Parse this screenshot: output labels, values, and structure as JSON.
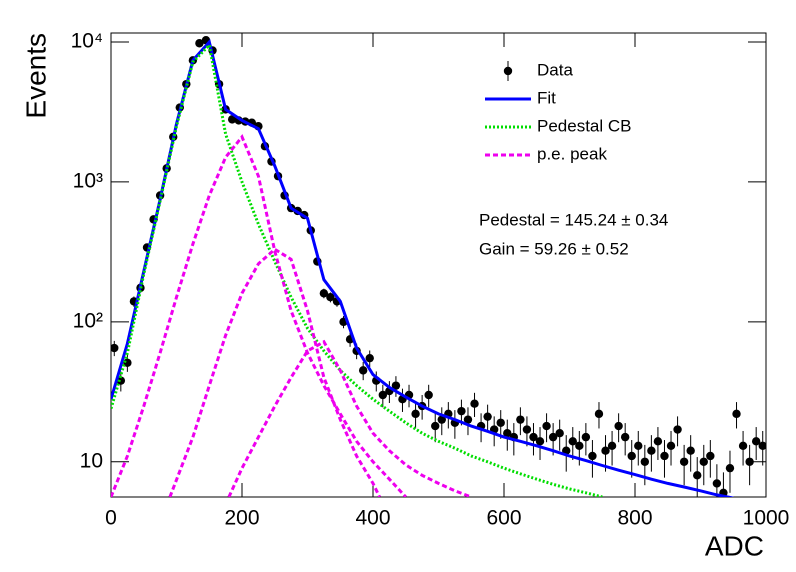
{
  "chart_data": {
    "type": "scatter",
    "x_label": "ADC",
    "y_label": "Events",
    "xlim": [
      0,
      1000
    ],
    "xticks": [
      0,
      200,
      400,
      600,
      800,
      1000
    ],
    "ylim": [
      5.6,
      11600
    ],
    "log_y": true,
    "yticks": [
      10,
      {
        "value": 100,
        "label": "10²"
      },
      {
        "value": 1000,
        "label": "10³"
      },
      {
        "value": 10000,
        "label": "10⁴"
      }
    ],
    "legend": "upper right",
    "annotations": [
      "Pedestal = 145.24 ± 0.34",
      "Gain = 59.26 ± 0.52"
    ],
    "series": [
      {
        "name": "Data",
        "color": "#000000",
        "kind": "points",
        "x": [
          5,
          15,
          25,
          35,
          45,
          55,
          65,
          75,
          85,
          95,
          105,
          115,
          125,
          135,
          145,
          155,
          165,
          175,
          185,
          195,
          205,
          215,
          225,
          235,
          245,
          255,
          265,
          275,
          285,
          295,
          305,
          315,
          325,
          335,
          345,
          355,
          365,
          375,
          385,
          395,
          405,
          415,
          425,
          435,
          445,
          455,
          465,
          475,
          485,
          495,
          505,
          515,
          525,
          535,
          545,
          555,
          565,
          575,
          585,
          595,
          605,
          615,
          625,
          635,
          645,
          655,
          665,
          675,
          685,
          695,
          705,
          715,
          725,
          735,
          745,
          755,
          765,
          775,
          785,
          795,
          805,
          815,
          825,
          835,
          845,
          855,
          865,
          875,
          885,
          895,
          905,
          915,
          925,
          935,
          945,
          955,
          965,
          975,
          985,
          995
        ],
        "values": [
          65,
          38,
          51,
          140,
          175,
          340,
          540,
          800,
          1250,
          2100,
          3400,
          5000,
          7400,
          9800,
          10300,
          8700,
          5000,
          3300,
          2800,
          2750,
          2700,
          2650,
          2500,
          1800,
          1400,
          1100,
          800,
          650,
          620,
          580,
          450,
          270,
          160,
          150,
          140,
          100,
          75,
          62,
          45,
          55,
          38,
          30,
          32,
          35,
          28,
          30,
          22,
          25,
          30,
          18,
          20,
          22,
          19,
          23,
          20,
          26,
          18,
          21,
          17,
          19,
          16,
          15,
          20,
          17,
          15,
          14,
          18,
          15,
          16,
          12,
          14,
          13,
          15,
          11,
          22,
          12,
          13,
          18,
          15,
          11,
          13,
          10,
          12,
          14,
          11,
          13,
          17,
          10,
          12,
          8,
          10,
          11,
          7,
          6,
          9,
          22,
          13,
          10,
          14,
          13
        ],
        "errors": [
          8.1,
          6.2,
          7.1,
          11.8,
          13.2,
          18.4,
          23.2,
          28.3,
          35.4,
          45.8,
          58.3,
          70.7,
          86.0,
          99.0,
          101.5,
          93.3,
          70.7,
          57.4,
          52.9,
          52.4,
          52.0,
          51.5,
          50.0,
          42.4,
          37.4,
          33.2,
          28.3,
          25.5,
          24.9,
          24.1,
          21.2,
          16.4,
          12.6,
          12.2,
          11.8,
          10,
          8.7,
          7.9,
          6.7,
          7.4,
          6.2,
          5.5,
          5.7,
          5.9,
          5.3,
          5.5,
          4.7,
          5,
          5.5,
          4.2,
          4.5,
          4.7,
          4.4,
          4.8,
          4.5,
          5.1,
          4.2,
          4.6,
          4.1,
          4.4,
          4,
          3.9,
          4.5,
          4.1,
          3.9,
          3.7,
          4.2,
          3.9,
          4,
          3.5,
          3.7,
          3.6,
          3.9,
          3.3,
          4.7,
          3.5,
          3.6,
          4.2,
          3.9,
          3.3,
          3.6,
          3.2,
          3.5,
          3.7,
          3.3,
          3.6,
          4.1,
          3.2,
          3.5,
          2.8,
          3.2,
          3.3,
          2.6,
          2.4,
          3,
          4.7,
          3.6,
          3.2,
          3.7,
          3.6
        ]
      },
      {
        "name": "Fit",
        "color": "#0000ff",
        "kind": "line",
        "style": "solid",
        "parts": [
          {
            "x": [
              0,
              25,
              50,
              75,
              100,
              125,
              150,
              175,
              200,
              225,
              250,
              275,
              300,
              325,
              350,
              375,
              400,
              425,
              450,
              475,
              500,
              525,
              550,
              575,
              600,
              625,
              650,
              675,
              700,
              725,
              750,
              775,
              800,
              825,
              850,
              875,
              900,
              925,
              950
            ],
            "values": [
              28,
              70,
              230,
              750,
              2600,
              7400,
              10000,
              3300,
              2750,
              2400,
              1300,
              650,
              550,
              200,
              140,
              65,
              42,
              34,
              29,
              25,
              22,
              20,
              18,
              16.5,
              15,
              14,
              13,
              12,
              11,
              10.2,
              9.4,
              8.7,
              8.1,
              7.5,
              7,
              6.6,
              6.2,
              5.8,
              5.5
            ]
          }
        ]
      },
      {
        "name": "Pedestal CB",
        "color": "#00dd00",
        "kind": "line",
        "style": "dotted",
        "parts": [
          {
            "x": [
              0,
              25,
              50,
              75,
              100,
              125,
              150,
              175,
              200,
              225,
              250,
              275,
              300,
              325,
              350,
              375,
              400,
              425,
              450,
              475,
              500,
              525,
              550,
              575,
              600,
              625,
              650,
              675,
              700,
              725,
              750
            ],
            "values": [
              24,
              60,
              220,
              730,
              2500,
              7200,
              9500,
              2200,
              1000,
              500,
              270,
              150,
              90,
              62,
              45,
              35,
              28,
              23,
              19,
              16,
              14,
              12.5,
              11,
              10,
              9,
              8.2,
              7.5,
              6.9,
              6.4,
              6,
              5.6
            ]
          }
        ]
      },
      {
        "name": "p.e. peak",
        "color": "#ee00ee",
        "kind": "line",
        "style": "dashed",
        "parts": [
          {
            "x": [
              0,
              25,
              50,
              75,
              100,
              125,
              150,
              175,
              200,
              225,
              250,
              275,
              300,
              325,
              350,
              375,
              400,
              425,
              450
            ],
            "values": [
              5.6,
              11,
              25,
              60,
              150,
              360,
              800,
              1500,
              2100,
              1100,
              320,
              120,
              60,
              35,
              22,
              14,
              10,
              7.5,
              5.6
            ]
          },
          {
            "x": [
              90,
              125,
              150,
              175,
              200,
              225,
              250,
              275,
              300,
              325,
              350,
              375,
              400,
              410
            ],
            "values": [
              5.6,
              15,
              35,
              80,
              160,
              260,
              330,
              280,
              120,
              40,
              20,
              11,
              7,
              5.6
            ]
          },
          {
            "x": [
              180,
              200,
              225,
              250,
              275,
              300,
              325,
              350,
              375,
              400,
              425,
              450,
              475,
              500,
              525,
              550
            ],
            "values": [
              5.6,
              9,
              15,
              25,
              40,
              62,
              72,
              45,
              25,
              16,
              12,
              9.5,
              8,
              7,
              6.2,
              5.6
            ]
          }
        ]
      }
    ]
  }
}
